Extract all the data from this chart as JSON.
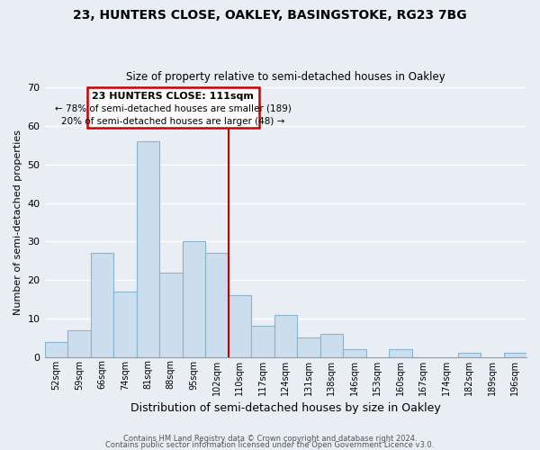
{
  "title1": "23, HUNTERS CLOSE, OAKLEY, BASINGSTOKE, RG23 7BG",
  "title2": "Size of property relative to semi-detached houses in Oakley",
  "xlabel": "Distribution of semi-detached houses by size in Oakley",
  "ylabel": "Number of semi-detached properties",
  "footer1": "Contains HM Land Registry data © Crown copyright and database right 2024.",
  "footer2": "Contains public sector information licensed under the Open Government Licence v3.0.",
  "bin_labels": [
    "52sqm",
    "59sqm",
    "66sqm",
    "74sqm",
    "81sqm",
    "88sqm",
    "95sqm",
    "102sqm",
    "110sqm",
    "117sqm",
    "124sqm",
    "131sqm",
    "138sqm",
    "146sqm",
    "153sqm",
    "160sqm",
    "167sqm",
    "174sqm",
    "182sqm",
    "189sqm",
    "196sqm"
  ],
  "bar_values": [
    4,
    7,
    27,
    17,
    56,
    22,
    30,
    27,
    16,
    8,
    11,
    5,
    6,
    2,
    0,
    2,
    0,
    0,
    1,
    0,
    1
  ],
  "bar_color": "#ccdded",
  "bar_edge_color": "#8ab4cc",
  "marker_line_color": "#cc0000",
  "annotation_box_edge_color": "#cc0000",
  "marker_label": "23 HUNTERS CLOSE: 111sqm",
  "annotation_smaller": "← 78% of semi-detached houses are smaller (189)",
  "annotation_larger": "20% of semi-detached houses are larger (48) →",
  "ylim": [
    0,
    70
  ],
  "yticks": [
    0,
    10,
    20,
    30,
    40,
    50,
    60,
    70
  ],
  "background_color": "#e8eef4",
  "grid_color": "#ffffff"
}
